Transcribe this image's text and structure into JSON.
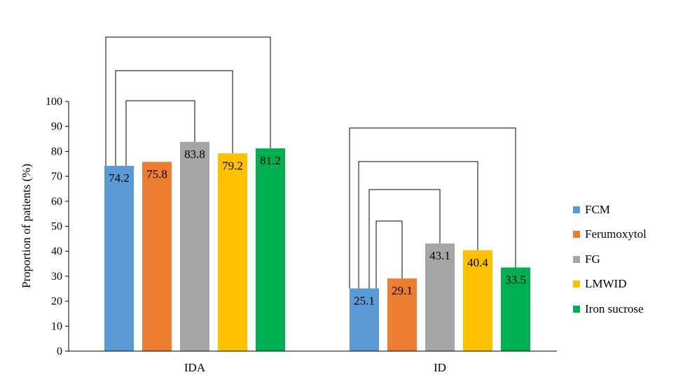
{
  "chart_data": {
    "type": "bar",
    "title": "",
    "xlabel": "",
    "ylabel": "Proportion of patients (%)",
    "ylim": [
      0,
      100
    ],
    "yticks": [
      0,
      10,
      20,
      30,
      40,
      50,
      60,
      70,
      80,
      90,
      100
    ],
    "categories": [
      "IDA",
      "ID"
    ],
    "series": [
      {
        "name": "FCM",
        "color": "#5B9BD5",
        "values": [
          74.2,
          25.1
        ],
        "labels": [
          "74.2",
          "25.1"
        ]
      },
      {
        "name": "Ferumoxytol",
        "color": "#ED7D31",
        "values": [
          75.8,
          29.1
        ],
        "labels": [
          "75.8",
          "29.1"
        ]
      },
      {
        "name": "FG",
        "color": "#A5A5A5",
        "values": [
          83.8,
          43.1
        ],
        "labels": [
          "83.8",
          "43.1"
        ]
      },
      {
        "name": "LMWID",
        "color": "#FFC000",
        "values": [
          79.2,
          40.4
        ],
        "labels": [
          "79.2",
          "40.4"
        ]
      },
      {
        "name": "Iron sucrose",
        "color": "#00B050",
        "values": [
          81.2,
          33.5
        ],
        "labels": [
          "81.2",
          "33.5"
        ]
      }
    ],
    "grid": false,
    "legend_position": "right",
    "comparison_brackets": [
      {
        "category": "IDA",
        "from_series": "FCM",
        "to_series": "FG"
      },
      {
        "category": "IDA",
        "from_series": "FCM",
        "to_series": "LMWID"
      },
      {
        "category": "IDA",
        "from_series": "FCM",
        "to_series": "Iron sucrose"
      },
      {
        "category": "ID",
        "from_series": "FCM",
        "to_series": "Ferumoxytol"
      },
      {
        "category": "ID",
        "from_series": "FCM",
        "to_series": "FG"
      },
      {
        "category": "ID",
        "from_series": "FCM",
        "to_series": "LMWID"
      },
      {
        "category": "ID",
        "from_series": "FCM",
        "to_series": "Iron sucrose"
      }
    ]
  }
}
